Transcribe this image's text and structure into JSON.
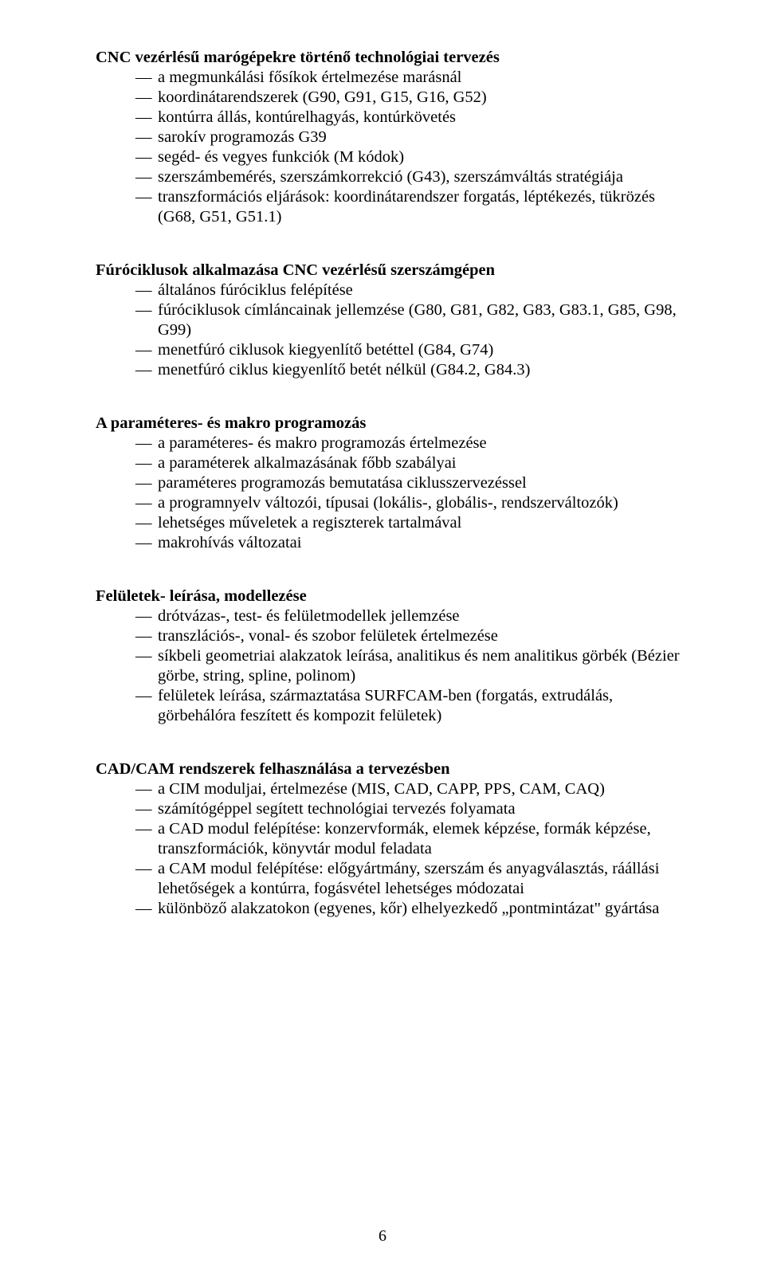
{
  "page": {
    "number": "6",
    "font_family": "Times New Roman",
    "body_fontsize_pt": 12,
    "text_color": "#000000",
    "background_color": "#ffffff"
  },
  "sections": [
    {
      "title": "CNC vezérlésű marógépekre történő technológiai tervezés",
      "items": [
        "a megmunkálási fősíkok értelmezése marásnál",
        "koordinátarendszerek (G90, G91, G15, G16, G52)",
        "kontúrra állás, kontúrelhagyás, kontúrkövetés",
        "sarokív programozás G39",
        "segéd- és vegyes funkciók (M kódok)",
        "szerszámbemérés, szerszámkorrekció (G43), szerszámváltás stratégiája",
        "transzformációs eljárások: koordinátarendszer forgatás, léptékezés, tükrözés (G68, G51, G51.1)"
      ]
    },
    {
      "title": "Fúróciklusok alkalmazása CNC vezérlésű szerszámgépen",
      "items": [
        "általános fúróciklus felépítése",
        "fúróciklusok címláncainak jellemzése (G80, G81, G82, G83, G83.1, G85, G98, G99)",
        "menetfúró ciklusok kiegyenlítő betéttel (G84, G74)",
        "menetfúró ciklus kiegyenlítő betét nélkül (G84.2, G84.3)"
      ]
    },
    {
      "title": "A paraméteres- és makro programozás",
      "items": [
        "a paraméteres- és makro programozás értelmezése",
        "a paraméterek alkalmazásának főbb szabályai",
        "paraméteres programozás bemutatása ciklusszervezéssel",
        "a programnyelv változói, típusai (lokális-, globális-, rendszerváltozók)",
        "lehetséges műveletek a regiszterek tartalmával",
        "makrohívás változatai"
      ]
    },
    {
      "title": "Felületek- leírása, modellezése",
      "items": [
        "drótvázas-, test- és felületmodellek jellemzése",
        "transzlációs-, vonal- és szobor felületek értelmezése",
        "síkbeli geometriai alakzatok leírása, analitikus és nem analitikus görbék (Bézier görbe, string, spline, polinom)",
        "felületek leírása, származtatása SURFCAM-ben (forgatás, extrudálás, görbehálóra feszített és kompozit felületek)"
      ]
    },
    {
      "title": "CAD/CAM rendszerek felhasználása a tervezésben",
      "items": [
        "a CIM moduljai, értelmezése (MIS, CAD, CAPP, PPS, CAM, CAQ)",
        "számítógéppel segített technológiai tervezés folyamata",
        "a CAD modul felépítése: konzervformák, elemek képzése, formák képzése, transzformációk, könyvtár modul feladata",
        "a CAM modul felépítése: előgyártmány, szerszám és anyagválasztás, ráállási lehetőségek a kontúrra, fogásvétel lehetséges módozatai",
        "különböző alakzatokon (egyenes, kőr) elhelyezkedő „pontmintázat\" gyártása"
      ]
    }
  ]
}
